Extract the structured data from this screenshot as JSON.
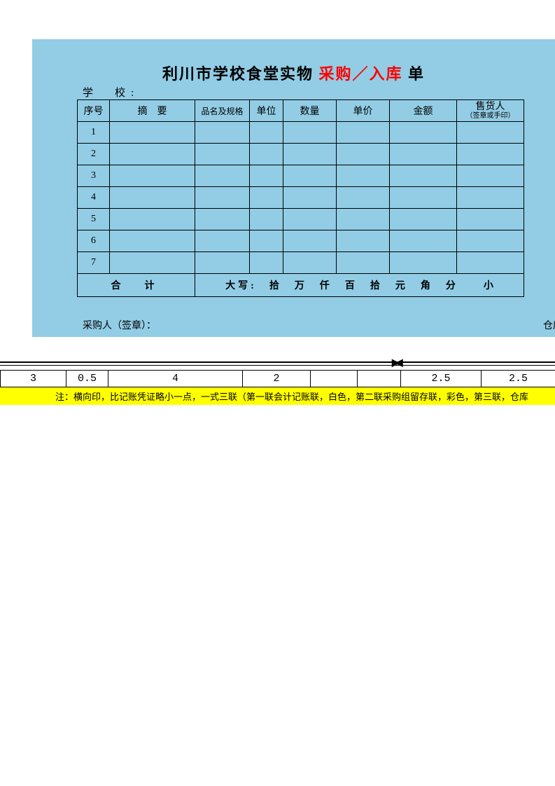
{
  "colors": {
    "panel_bg": "#92cde5",
    "title_red": "#ff0000",
    "note_bg": "#ffff00",
    "border": "#000000",
    "page_bg": "#ffffff"
  },
  "title": {
    "part1": "利川市学校食堂实物",
    "part2_red": "采购／入库",
    "part3": "单"
  },
  "school_label": "学　校:",
  "headers": {
    "seq": "序号",
    "abstract": "摘　要",
    "spec": "品名及规格",
    "unit": "单位",
    "qty": "数量",
    "price": "单价",
    "amount": "金额",
    "seller": "售货人",
    "seller_sub": "（签章或手印）"
  },
  "rows": [
    {
      "seq": "1"
    },
    {
      "seq": "2"
    },
    {
      "seq": "3"
    },
    {
      "seq": "4"
    },
    {
      "seq": "5"
    },
    {
      "seq": "6"
    },
    {
      "seq": "7"
    }
  ],
  "total": {
    "label": "合　计",
    "daxie": "大写:　拾　万　仟　百　拾　元　角　分　　小"
  },
  "footer": {
    "purchaser": "采购人（签章）：",
    "warehouse": "仓库保"
  },
  "ruler": {
    "arrows": "▶◀",
    "values": [
      "3",
      "0.5",
      "4",
      "2",
      "",
      "",
      "2.5",
      "2.5"
    ],
    "widths": [
      94,
      60,
      192,
      97,
      67,
      62,
      115,
      106
    ]
  },
  "note": "注：横向印，比记账凭证略小一点，一式三联（第一联会计记账联，白色，第二联采购组留存联，彩色，第三联，仓库"
}
